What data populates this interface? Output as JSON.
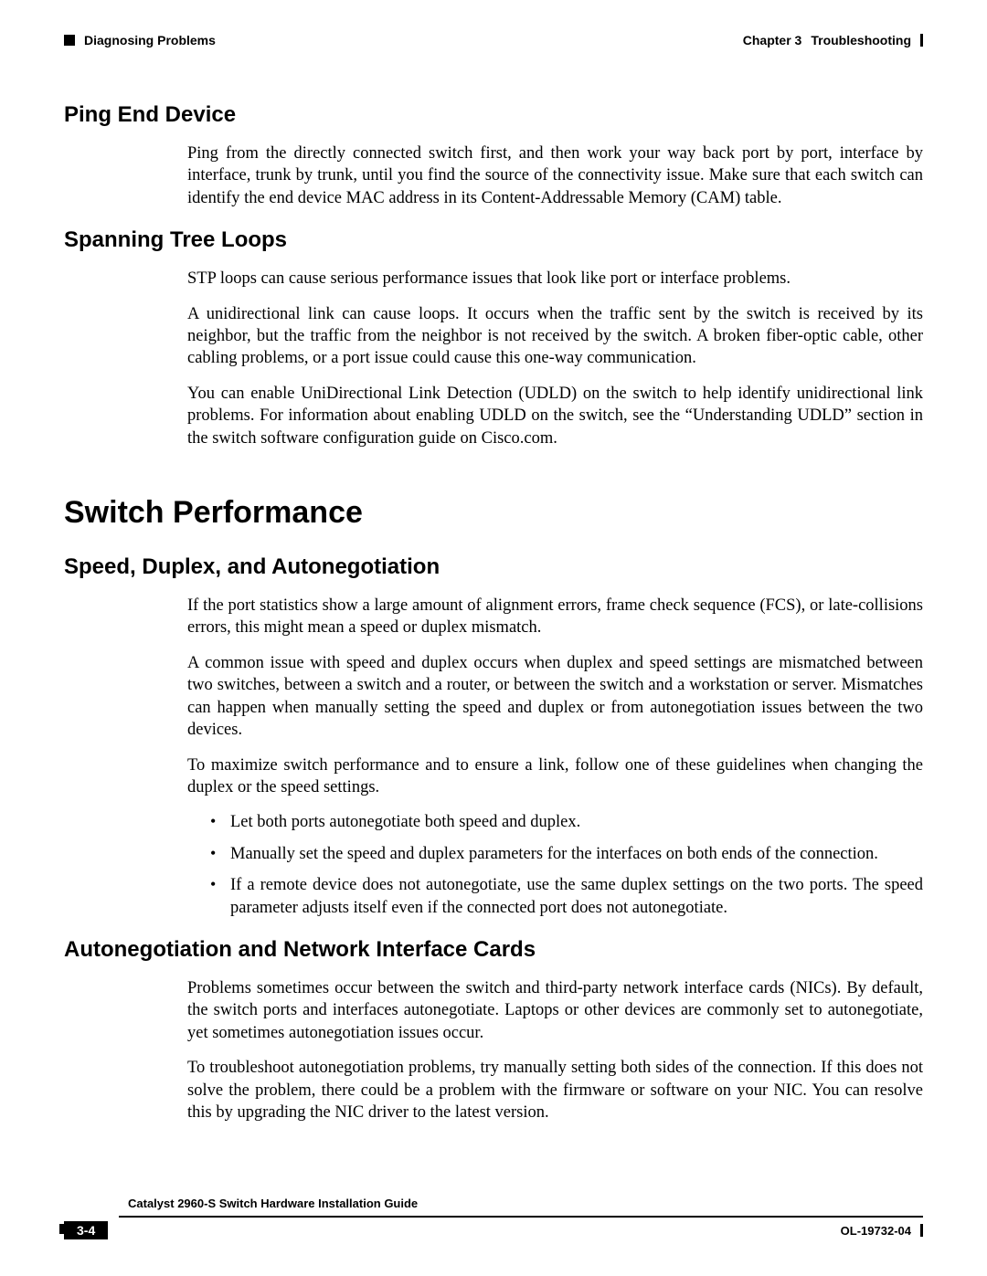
{
  "header": {
    "left_label": "Diagnosing Problems",
    "chapter_label": "Chapter 3",
    "chapter_title": "Troubleshooting"
  },
  "sections": {
    "ping": {
      "title": "Ping End Device",
      "p1": "Ping from the directly connected switch first, and then work your way back port by port, interface by interface, trunk by trunk, until you find the source of the connectivity issue. Make sure that each switch can identify the end device MAC address in its Content-Addressable Memory (CAM) table."
    },
    "stp": {
      "title": "Spanning Tree Loops",
      "p1": "STP loops can cause serious performance issues that look like port or interface problems.",
      "p2": "A unidirectional link can cause loops. It occurs when the traffic sent by the switch is received by its neighbor, but the traffic from the neighbor is not received by the switch. A broken fiber-optic cable, other cabling problems, or a port issue could cause this one-way communication.",
      "p3": "You can enable UniDirectional Link Detection (UDLD) on the switch to help identify unidirectional link problems. For information about enabling UDLD on the switch, see the “Understanding UDLD” section in the switch software configuration guide on Cisco.com."
    },
    "perf": {
      "title": "Switch Performance"
    },
    "speed": {
      "title": "Speed, Duplex, and Autonegotiation",
      "p1": "If the port statistics show a large amount of alignment errors, frame check sequence (FCS), or late-collisions errors, this might mean a speed or duplex mismatch.",
      "p2": "A common issue with speed and duplex occurs when duplex and speed settings are mismatched between two switches, between a switch and a router, or between the switch and a workstation or server. Mismatches can happen when manually setting the speed and duplex or from autonegotiation issues between the two devices.",
      "p3": "To maximize switch performance and to ensure a link, follow one of these guidelines when changing the duplex or the speed settings.",
      "b1": "Let both ports autonegotiate both speed and duplex.",
      "b2": "Manually set the speed and duplex parameters for the interfaces on both ends of the connection.",
      "b3": "If a remote device does not autonegotiate, use the same duplex settings on the two ports. The speed parameter adjusts itself even if the connected port does not autonegotiate."
    },
    "nic": {
      "title": "Autonegotiation and Network Interface Cards",
      "p1": "Problems sometimes occur between the switch and third-party network interface cards (NICs). By default, the switch ports and interfaces autonegotiate. Laptops or other devices are commonly set to autonegotiate, yet sometimes autonegotiation issues occur.",
      "p2": "To troubleshoot autonegotiation problems, try manually setting both sides of the connection. If this does not solve the problem, there could be a problem with the firmware or software on your NIC. You can resolve this by upgrading the NIC driver to the latest version."
    }
  },
  "footer": {
    "guide_title": "Catalyst 2960-S Switch Hardware Installation Guide",
    "page_num": "3-4",
    "doc_id": "OL-19732-04"
  }
}
